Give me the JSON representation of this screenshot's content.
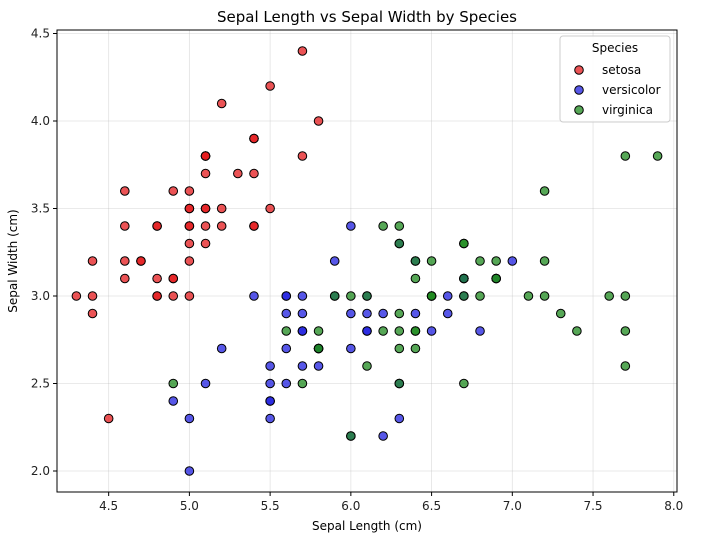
{
  "chart_data": {
    "type": "scatter",
    "title": "Sepal Length vs Sepal Width by Species",
    "xlabel": "Sepal Length (cm)",
    "ylabel": "Sepal Width (cm)",
    "xlim": [
      4.18,
      8.02
    ],
    "ylim": [
      1.88,
      4.52
    ],
    "xticks": [
      "4.5",
      "5.0",
      "5.5",
      "6.0",
      "6.5",
      "7.0",
      "7.5",
      "8.0"
    ],
    "yticks": [
      "2.0",
      "2.5",
      "3.0",
      "3.5",
      "4.0",
      "4.5"
    ],
    "grid": true,
    "legend": {
      "title": "Species",
      "placement": "top-right"
    },
    "series": [
      {
        "name": "setosa",
        "color": "#e41a1c",
        "points": [
          [
            5.1,
            3.5
          ],
          [
            4.9,
            3.0
          ],
          [
            4.7,
            3.2
          ],
          [
            4.6,
            3.1
          ],
          [
            5.0,
            3.6
          ],
          [
            5.4,
            3.9
          ],
          [
            4.6,
            3.4
          ],
          [
            5.0,
            3.4
          ],
          [
            4.4,
            2.9
          ],
          [
            4.9,
            3.1
          ],
          [
            5.4,
            3.7
          ],
          [
            4.8,
            3.4
          ],
          [
            4.8,
            3.0
          ],
          [
            4.3,
            3.0
          ],
          [
            5.8,
            4.0
          ],
          [
            5.7,
            4.4
          ],
          [
            5.4,
            3.9
          ],
          [
            5.1,
            3.5
          ],
          [
            5.7,
            3.8
          ],
          [
            5.1,
            3.8
          ],
          [
            5.4,
            3.4
          ],
          [
            5.1,
            3.7
          ],
          [
            4.6,
            3.6
          ],
          [
            5.1,
            3.3
          ],
          [
            4.8,
            3.4
          ],
          [
            5.0,
            3.0
          ],
          [
            5.0,
            3.4
          ],
          [
            5.2,
            3.5
          ],
          [
            5.2,
            3.4
          ],
          [
            4.7,
            3.2
          ],
          [
            4.8,
            3.1
          ],
          [
            5.4,
            3.4
          ],
          [
            5.2,
            4.1
          ],
          [
            5.5,
            4.2
          ],
          [
            4.9,
            3.1
          ],
          [
            5.0,
            3.2
          ],
          [
            5.5,
            3.5
          ],
          [
            4.9,
            3.6
          ],
          [
            4.4,
            3.0
          ],
          [
            5.1,
            3.4
          ],
          [
            5.0,
            3.5
          ],
          [
            4.5,
            2.3
          ],
          [
            4.4,
            3.2
          ],
          [
            5.0,
            3.5
          ],
          [
            5.1,
            3.8
          ],
          [
            4.8,
            3.0
          ],
          [
            5.1,
            3.8
          ],
          [
            4.6,
            3.2
          ],
          [
            5.3,
            3.7
          ],
          [
            5.0,
            3.3
          ]
        ]
      },
      {
        "name": "versicolor",
        "color": "#1f1fe0",
        "points": [
          [
            7.0,
            3.2
          ],
          [
            6.4,
            3.2
          ],
          [
            6.9,
            3.1
          ],
          [
            5.5,
            2.3
          ],
          [
            6.5,
            2.8
          ],
          [
            5.7,
            2.8
          ],
          [
            6.3,
            3.3
          ],
          [
            4.9,
            2.4
          ],
          [
            6.6,
            2.9
          ],
          [
            5.2,
            2.7
          ],
          [
            5.0,
            2.0
          ],
          [
            5.9,
            3.0
          ],
          [
            6.0,
            2.2
          ],
          [
            6.1,
            2.9
          ],
          [
            5.6,
            2.9
          ],
          [
            6.7,
            3.1
          ],
          [
            5.6,
            3.0
          ],
          [
            5.8,
            2.7
          ],
          [
            6.2,
            2.2
          ],
          [
            5.6,
            2.5
          ],
          [
            5.9,
            3.2
          ],
          [
            6.1,
            2.8
          ],
          [
            6.3,
            2.5
          ],
          [
            6.1,
            2.8
          ],
          [
            6.4,
            2.9
          ],
          [
            6.6,
            3.0
          ],
          [
            6.8,
            2.8
          ],
          [
            6.7,
            3.0
          ],
          [
            6.0,
            2.9
          ],
          [
            5.7,
            2.6
          ],
          [
            5.5,
            2.4
          ],
          [
            5.5,
            2.4
          ],
          [
            5.8,
            2.7
          ],
          [
            6.0,
            2.7
          ],
          [
            5.4,
            3.0
          ],
          [
            6.0,
            3.4
          ],
          [
            6.7,
            3.1
          ],
          [
            6.3,
            2.3
          ],
          [
            5.6,
            3.0
          ],
          [
            5.5,
            2.5
          ],
          [
            5.5,
            2.6
          ],
          [
            6.1,
            3.0
          ],
          [
            5.8,
            2.6
          ],
          [
            5.0,
            2.3
          ],
          [
            5.6,
            2.7
          ],
          [
            5.7,
            3.0
          ],
          [
            5.7,
            2.9
          ],
          [
            6.2,
            2.9
          ],
          [
            5.1,
            2.5
          ],
          [
            5.7,
            2.8
          ]
        ]
      },
      {
        "name": "virginica",
        "color": "#1e8a1e",
        "points": [
          [
            6.3,
            3.3
          ],
          [
            5.8,
            2.7
          ],
          [
            7.1,
            3.0
          ],
          [
            6.3,
            2.9
          ],
          [
            6.5,
            3.0
          ],
          [
            7.6,
            3.0
          ],
          [
            4.9,
            2.5
          ],
          [
            7.3,
            2.9
          ],
          [
            6.7,
            2.5
          ],
          [
            7.2,
            3.6
          ],
          [
            6.5,
            3.2
          ],
          [
            6.4,
            2.7
          ],
          [
            6.8,
            3.0
          ],
          [
            5.7,
            2.5
          ],
          [
            5.8,
            2.8
          ],
          [
            6.4,
            3.2
          ],
          [
            6.5,
            3.0
          ],
          [
            7.7,
            3.8
          ],
          [
            7.7,
            2.6
          ],
          [
            6.0,
            2.2
          ],
          [
            6.9,
            3.2
          ],
          [
            5.6,
            2.8
          ],
          [
            7.7,
            2.8
          ],
          [
            6.3,
            2.7
          ],
          [
            6.7,
            3.3
          ],
          [
            7.2,
            3.2
          ],
          [
            6.2,
            2.8
          ],
          [
            6.1,
            3.0
          ],
          [
            6.4,
            2.8
          ],
          [
            7.2,
            3.0
          ],
          [
            7.4,
            2.8
          ],
          [
            7.9,
            3.8
          ],
          [
            6.4,
            2.8
          ],
          [
            6.3,
            2.8
          ],
          [
            6.1,
            2.6
          ],
          [
            7.7,
            3.0
          ],
          [
            6.3,
            3.4
          ],
          [
            6.4,
            3.1
          ],
          [
            6.0,
            3.0
          ],
          [
            6.9,
            3.1
          ],
          [
            6.7,
            3.1
          ],
          [
            6.9,
            3.1
          ],
          [
            5.8,
            2.7
          ],
          [
            6.8,
            3.2
          ],
          [
            6.7,
            3.3
          ],
          [
            6.7,
            3.0
          ],
          [
            6.3,
            2.5
          ],
          [
            6.5,
            3.0
          ],
          [
            6.2,
            3.4
          ],
          [
            5.9,
            3.0
          ]
        ]
      }
    ]
  }
}
